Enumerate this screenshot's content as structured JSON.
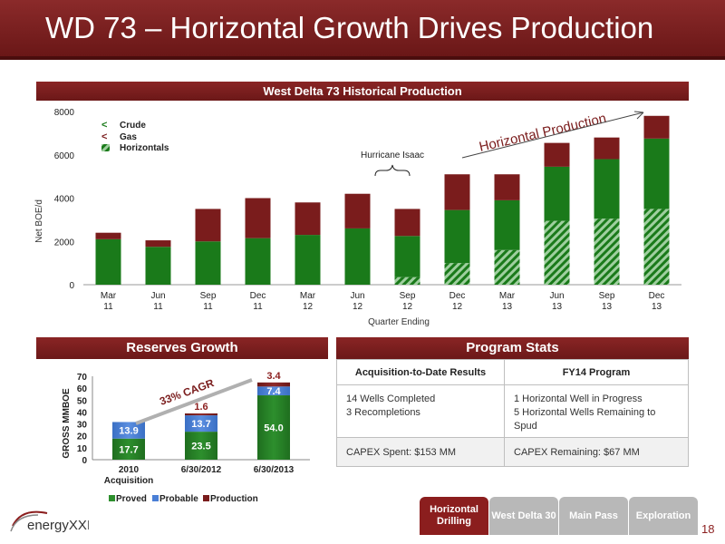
{
  "page": {
    "title": "WD 73 – Horizontal Growth Drives Production",
    "page_number": "18"
  },
  "top_chart": {
    "header": "West Delta 73 Historical Production",
    "ylabel": "Net BOE/d",
    "xlabel": "Quarter Ending",
    "yticks": [
      "0",
      "2000",
      "4000",
      "6000",
      "8000"
    ],
    "annotation_hurricane": "Hurricane Isaac",
    "annotation_horizontal": "Horizontal Production",
    "legend": {
      "crude": "Crude",
      "gas": "Gas",
      "horizontals": "Horizontals"
    }
  },
  "reserves": {
    "header": "Reserves Growth",
    "ylabel": "GROSS MMBOE",
    "cagr": "33% CAGR",
    "yticks": [
      "0",
      "10",
      "20",
      "30",
      "40",
      "50",
      "60",
      "70"
    ],
    "legend": {
      "proved": "Proved",
      "probable": "Probable",
      "production": "Production"
    }
  },
  "program": {
    "header": "Program Stats",
    "col1_header": "Acquisition-to-Date Results",
    "col2_header": "FY14 Program",
    "r1c1_line1": "14 Wells Completed",
    "r1c1_line2": "3 Recompletions",
    "r1c2_line1": "1 Horizontal Well in Progress",
    "r1c2_line2": "5 Horizontal Wells Remaining to Spud",
    "r2c1": "CAPEX Spent: $153 MM",
    "r2c2": "CAPEX Remaining: $67 MM"
  },
  "nav": {
    "horizontal": "Horizontal Drilling",
    "wd30": "West Delta 30",
    "main_pass": "Main Pass",
    "exploration": "Exploration"
  },
  "logo_text": "energyXXI",
  "colors": {
    "crude": "#1a7a1a",
    "gas": "#7a1c1c",
    "probable": "#4a7fd6",
    "brand": "#8b1e1e"
  },
  "chart_data": [
    {
      "type": "bar",
      "stacked": true,
      "categories": [
        "Mar 11",
        "Jun 11",
        "Sep 11",
        "Dec 11",
        "Mar 12",
        "Jun 12",
        "Sep 12",
        "Dec 12",
        "Mar 13",
        "Jun 13",
        "Sep 13",
        "Dec 13"
      ],
      "series": [
        {
          "name": "Horizontals",
          "values": [
            0,
            0,
            0,
            0,
            0,
            0,
            350,
            1000,
            1600,
            2950,
            3050,
            3500
          ]
        },
        {
          "name": "Crude",
          "values": [
            2100,
            1750,
            2000,
            2150,
            2300,
            2600,
            1900,
            2450,
            2300,
            2500,
            2750,
            3250
          ]
        },
        {
          "name": "Gas",
          "values": [
            300,
            300,
            1500,
            1850,
            1500,
            1600,
            1250,
            1650,
            1200,
            1100,
            1000,
            1050
          ]
        }
      ],
      "ylim": [
        0,
        8000
      ]
    },
    {
      "type": "bar",
      "stacked": true,
      "categories": [
        "2010 Acquisition",
        "6/30/2012",
        "6/30/2013"
      ],
      "series": [
        {
          "name": "Proved",
          "values": [
            17.7,
            23.5,
            54.0
          ]
        },
        {
          "name": "Probable",
          "values": [
            13.9,
            13.7,
            7.4
          ]
        },
        {
          "name": "Production",
          "values": [
            0,
            1.6,
            3.4
          ]
        }
      ],
      "ylim": [
        0,
        70
      ]
    }
  ]
}
